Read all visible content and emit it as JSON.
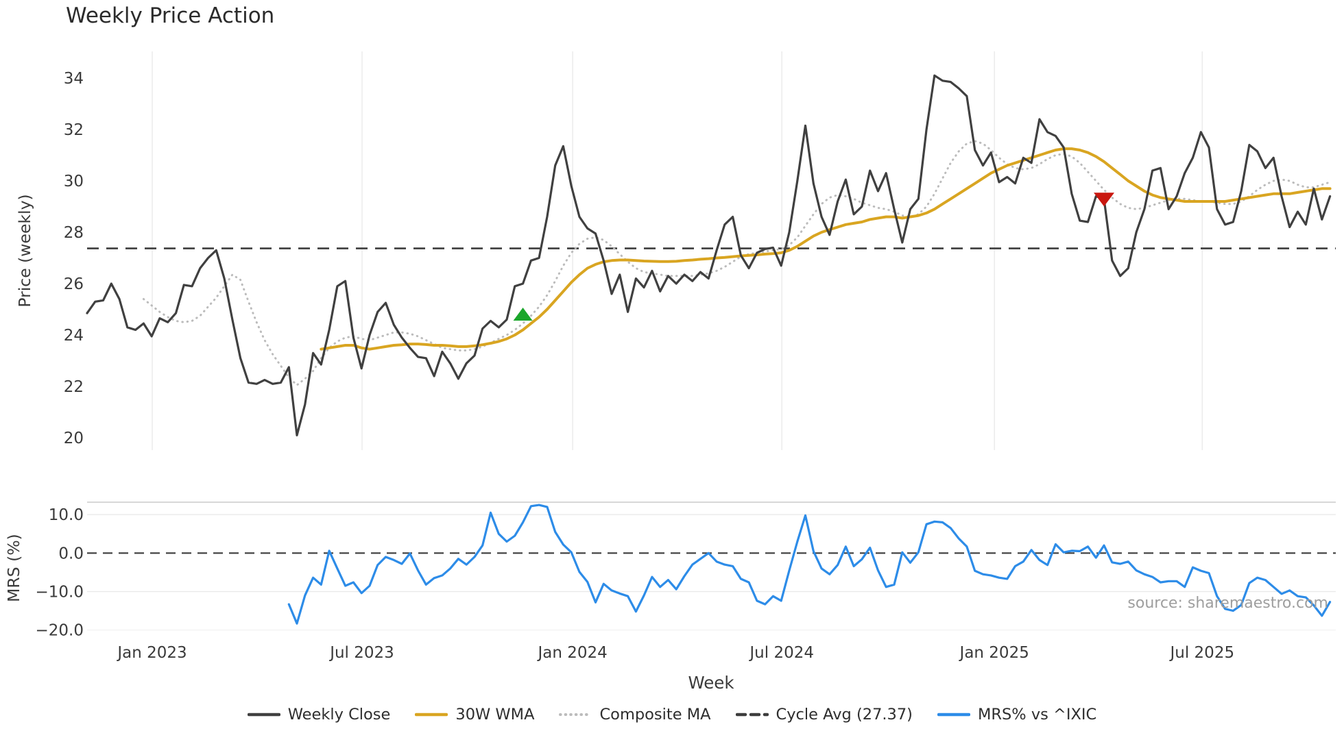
{
  "title": "Weekly Price Action",
  "source_note": "source: sharemaestro.com",
  "chart_data": {
    "type": "line",
    "title": "Weekly Price Action",
    "xlabel": "Week",
    "x_unit": "weeks starting Nov 2022, spacing 1 week",
    "x_ticks": [
      {
        "label": "Jan 2023",
        "week": 8.07
      },
      {
        "label": "Jul 2023",
        "week": 34.07
      },
      {
        "label": "Jan 2024",
        "week": 60.16
      },
      {
        "label": "Jul 2024",
        "week": 86.08
      },
      {
        "label": "Jan 2025",
        "week": 112.42
      },
      {
        "label": "Jul 2025",
        "week": 138.17
      }
    ],
    "panels": [
      {
        "name": "price",
        "ylabel": "Price (weekly)",
        "ylim": [
          19.5,
          35.0
        ],
        "grid": "vertical-only",
        "yticks": [
          {
            "v": 34,
            "label": "34"
          },
          {
            "v": 32,
            "label": "32"
          },
          {
            "v": 30,
            "label": "30"
          },
          {
            "v": 28,
            "label": "28"
          },
          {
            "v": 26,
            "label": "26"
          },
          {
            "v": 24,
            "label": "24"
          },
          {
            "v": 22,
            "label": "22"
          },
          {
            "v": 20,
            "label": "20"
          }
        ],
        "cycle_avg": 27.37,
        "series": [
          {
            "name": "Weekly Close",
            "color": "#404040",
            "style": "solid",
            "start_week": 0,
            "values": [
              24.85,
              25.3,
              25.35,
              26.0,
              25.4,
              24.3,
              24.2,
              24.45,
              23.95,
              24.65,
              24.5,
              24.85,
              25.95,
              25.9,
              26.6,
              27.0,
              27.3,
              26.2,
              24.6,
              23.1,
              22.15,
              22.1,
              22.25,
              22.1,
              22.15,
              22.75,
              20.1,
              21.3,
              23.3,
              22.85,
              24.2,
              25.9,
              26.1,
              23.9,
              22.7,
              24.0,
              24.9,
              25.25,
              24.4,
              23.9,
              23.5,
              23.15,
              23.1,
              22.4,
              23.35,
              22.9,
              22.3,
              22.9,
              23.2,
              24.25,
              24.55,
              24.3,
              24.6,
              25.9,
              26.0,
              26.9,
              27.0,
              28.6,
              30.6,
              31.35,
              29.8,
              28.6,
              28.15,
              27.95,
              26.9,
              25.6,
              26.35,
              24.9,
              26.2,
              25.85,
              26.5,
              25.7,
              26.3,
              26.0,
              26.35,
              26.1,
              26.45,
              26.2,
              27.3,
              28.3,
              28.6,
              27.1,
              26.6,
              27.2,
              27.35,
              27.4,
              26.7,
              28.0,
              30.0,
              32.15,
              29.9,
              28.6,
              27.9,
              29.2,
              30.05,
              28.7,
              29.0,
              30.4,
              29.6,
              30.3,
              28.9,
              27.6,
              28.9,
              29.3,
              32.0,
              34.1,
              33.9,
              33.85,
              33.6,
              33.3,
              31.2,
              30.6,
              31.1,
              29.95,
              30.15,
              29.9,
              30.9,
              30.7,
              32.4,
              31.9,
              31.75,
              31.3,
              29.5,
              28.45,
              28.4,
              29.4,
              29.3,
              26.9,
              26.3,
              26.6,
              28.0,
              28.9,
              30.4,
              30.5,
              28.9,
              29.4,
              30.3,
              30.9,
              31.9,
              31.3,
              28.9,
              28.3,
              28.4,
              29.6,
              31.4,
              31.15,
              30.5,
              30.9,
              29.4,
              28.2,
              28.8,
              28.3,
              29.7,
              28.5,
              29.4
            ]
          },
          {
            "name": "30W WMA",
            "color": "#d9a521",
            "style": "solid",
            "start_week": 29,
            "values": [
              23.45,
              23.5,
              23.55,
              23.6,
              23.6,
              23.5,
              23.45,
              23.5,
              23.55,
              23.6,
              23.62,
              23.65,
              23.65,
              23.63,
              23.6,
              23.6,
              23.58,
              23.55,
              23.55,
              23.58,
              23.62,
              23.68,
              23.75,
              23.85,
              24.0,
              24.2,
              24.45,
              24.7,
              25.0,
              25.35,
              25.7,
              26.05,
              26.35,
              26.6,
              26.75,
              26.85,
              26.9,
              26.92,
              26.92,
              26.9,
              26.88,
              26.87,
              26.86,
              26.86,
              26.87,
              26.9,
              26.92,
              26.95,
              26.97,
              27.0,
              27.02,
              27.05,
              27.08,
              27.1,
              27.12,
              27.15,
              27.17,
              27.2,
              27.3,
              27.45,
              27.65,
              27.85,
              28.0,
              28.1,
              28.2,
              28.3,
              28.35,
              28.4,
              28.5,
              28.55,
              28.6,
              28.6,
              28.55,
              28.6,
              28.65,
              28.75,
              28.9,
              29.1,
              29.3,
              29.5,
              29.7,
              29.9,
              30.1,
              30.3,
              30.45,
              30.6,
              30.7,
              30.8,
              30.9,
              31.0,
              31.1,
              31.2,
              31.25,
              31.25,
              31.2,
              31.1,
              30.95,
              30.75,
              30.5,
              30.25,
              30.0,
              29.8,
              29.6,
              29.45,
              29.35,
              29.3,
              29.25,
              29.2,
              29.2,
              29.2,
              29.2,
              29.2,
              29.2,
              29.25,
              29.3,
              29.35,
              29.4,
              29.45,
              29.5,
              29.5,
              29.5,
              29.55,
              29.6,
              29.65,
              29.7,
              29.7
            ]
          },
          {
            "name": "Composite MA",
            "color": "#bcbcbc",
            "style": "dotted",
            "start_week": 7,
            "values": [
              25.4,
              25.15,
              24.9,
              24.7,
              24.55,
              24.5,
              24.55,
              24.75,
              25.1,
              25.45,
              25.9,
              26.35,
              26.15,
              25.3,
              24.5,
              23.8,
              23.25,
              22.8,
              22.35,
              22.05,
              22.3,
              22.6,
              23.1,
              23.5,
              23.75,
              23.9,
              23.95,
              23.85,
              23.8,
              23.9,
              24.0,
              24.1,
              24.1,
              24.05,
              23.95,
              23.8,
              23.65,
              23.5,
              23.45,
              23.4,
              23.4,
              23.45,
              23.55,
              23.7,
              23.85,
              24.0,
              24.2,
              24.45,
              24.75,
              25.1,
              25.55,
              26.1,
              26.7,
              27.2,
              27.55,
              27.75,
              27.8,
              27.7,
              27.45,
              27.15,
              26.85,
              26.6,
              26.45,
              26.4,
              26.35,
              26.3,
              26.3,
              26.3,
              26.3,
              26.35,
              26.4,
              26.5,
              26.65,
              26.85,
              27.05,
              27.15,
              27.2,
              27.25,
              27.3,
              27.35,
              27.5,
              27.8,
              28.25,
              28.7,
              29.1,
              29.35,
              29.45,
              29.4,
              29.3,
              29.15,
              29.05,
              28.95,
              28.9,
              28.8,
              28.65,
              28.6,
              28.7,
              29.0,
              29.5,
              30.1,
              30.7,
              31.15,
              31.45,
              31.55,
              31.45,
              31.2,
              30.9,
              30.65,
              30.5,
              30.45,
              30.5,
              30.65,
              30.85,
              31.0,
              31.05,
              30.95,
              30.7,
              30.35,
              30.0,
              29.65,
              29.35,
              29.1,
              28.95,
              28.9,
              28.95,
              29.05,
              29.15,
              29.25,
              29.3,
              29.3,
              29.25,
              29.2,
              29.2,
              29.15,
              29.1,
              29.1,
              29.2,
              29.4,
              29.65,
              29.85,
              30.0,
              30.05,
              30.0,
              29.85,
              29.75,
              29.75,
              29.85,
              29.95
            ]
          }
        ],
        "markers": [
          {
            "name": "buy-signal",
            "shape": "triangle-up",
            "color": "#1ba62b",
            "week": 54,
            "price": 24.8
          },
          {
            "name": "sell-signal",
            "shape": "triangle-down",
            "color": "#c9170f",
            "week": 126,
            "price": 29.3
          }
        ]
      },
      {
        "name": "mrs",
        "ylabel": "MRS (%)",
        "ylim": [
          -20.9,
          13.2
        ],
        "grid": "horizontal-only",
        "yticks": [
          {
            "v": 10,
            "label": "10.0"
          },
          {
            "v": 0,
            "label": "0.0"
          },
          {
            "v": -10,
            "label": "−10.0"
          },
          {
            "v": -20,
            "label": "−20.0"
          }
        ],
        "zero_line": 0.0,
        "series": [
          {
            "name": "MRS% vs ^IXIC",
            "color": "#2d8ce8",
            "style": "solid",
            "start_week": 25,
            "values": [
              -13.3,
              -18.3,
              -11.0,
              -6.4,
              -8.2,
              0.6,
              -4.0,
              -8.5,
              -7.6,
              -10.4,
              -8.5,
              -3.1,
              -1.0,
              -1.8,
              -2.8,
              -0.1,
              -4.5,
              -8.2,
              -6.5,
              -5.8,
              -4.0,
              -1.5,
              -3.0,
              -1.0,
              2.0,
              10.5,
              5.0,
              3.0,
              4.5,
              8.0,
              12.2,
              12.5,
              12.0,
              5.5,
              2.2,
              0.2,
              -4.9,
              -7.5,
              -12.8,
              -8.0,
              -9.7,
              -10.5,
              -11.2,
              -15.2,
              -11.0,
              -6.2,
              -8.8,
              -7.0,
              -9.4,
              -6.0,
              -3.0,
              -1.5,
              0.0,
              -2.2,
              -3.0,
              -3.4,
              -6.7,
              -7.6,
              -12.4,
              -13.3,
              -11.2,
              -12.4,
              -4.5,
              3.0,
              9.8,
              0.5,
              -4.0,
              -5.5,
              -3.1,
              1.7,
              -3.4,
              -1.6,
              1.4,
              -4.5,
              -8.8,
              -8.2,
              0.2,
              -2.5,
              0.2,
              7.5,
              8.2,
              8.0,
              6.5,
              3.8,
              1.7,
              -4.6,
              -5.5,
              -5.8,
              -6.4,
              -6.7,
              -3.4,
              -2.2,
              0.8,
              -1.8,
              -3.1,
              2.3,
              0.2,
              0.6,
              0.5,
              1.7,
              -1.2,
              2.0,
              -2.4,
              -2.8,
              -2.2,
              -4.5,
              -5.5,
              -6.2,
              -7.6,
              -7.3,
              -7.3,
              -8.8,
              -3.7,
              -4.6,
              -5.2,
              -11.2,
              -14.5,
              -15.0,
              -13.5,
              -7.8,
              -6.4,
              -7.0,
              -8.8,
              -10.6,
              -9.7,
              -11.2,
              -11.5,
              -13.6,
              -16.3,
              -12.7
            ]
          }
        ]
      }
    ],
    "legend": [
      {
        "label": "Weekly Close",
        "swatch": "solid",
        "color": "#404040"
      },
      {
        "label": "30W WMA",
        "swatch": "solid",
        "color": "#d9a521"
      },
      {
        "label": "Composite MA",
        "swatch": "dotted",
        "color": "#bcbcbc"
      },
      {
        "label": "Cycle Avg (27.37)",
        "swatch": "dashed",
        "color": "#3d3d3d"
      },
      {
        "label": "MRS% vs ^IXIC",
        "swatch": "solid",
        "color": "#2d8ce8"
      }
    ],
    "legend_position": "bottom-center"
  }
}
